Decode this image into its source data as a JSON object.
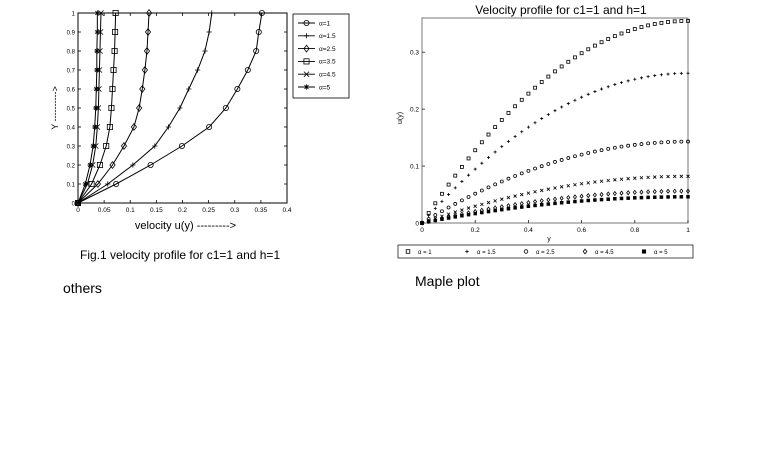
{
  "captions": {
    "left_caption": "Fig.1 velocity profile for c1=1 and h=1",
    "left_note": "others",
    "right_note": "Maple plot"
  },
  "chart_data": [
    {
      "type": "line",
      "title": "",
      "xlabel": "velocity u(y) --------->",
      "ylabel": "Y ---------->",
      "xlim": [
        0,
        0.4
      ],
      "ylim": [
        0,
        1
      ],
      "x_ticks": [
        "0",
        "0.05",
        "0.1",
        "0.15",
        "0.2",
        "0.25",
        "0.3",
        "0.35",
        "0.4"
      ],
      "y_ticks": [
        "0",
        "0.1",
        "0.2",
        "0.3",
        "0.4",
        "0.5",
        "0.6",
        "0.7",
        "0.8",
        "0.9",
        "1"
      ],
      "grid": false,
      "legend_position": "right",
      "y": [
        0,
        0.1,
        0.2,
        0.3,
        0.4,
        0.5,
        0.6,
        0.7,
        0.8,
        0.9,
        1.0
      ],
      "series": [
        {
          "name": "α=1",
          "marker": "circle",
          "values": [
            0,
            0.073,
            0.139,
            0.199,
            0.251,
            0.283,
            0.305,
            0.325,
            0.341,
            0.346,
            0.352
          ]
        },
        {
          "name": "α=1.5",
          "marker": "plus",
          "values": [
            0,
            0.057,
            0.105,
            0.147,
            0.173,
            0.195,
            0.212,
            0.229,
            0.243,
            0.251,
            0.256
          ]
        },
        {
          "name": "α=2.5",
          "marker": "diamond",
          "values": [
            0,
            0.038,
            0.066,
            0.088,
            0.107,
            0.117,
            0.123,
            0.128,
            0.132,
            0.134,
            0.136
          ]
        },
        {
          "name": "α=3.5",
          "marker": "square",
          "values": [
            0,
            0.026,
            0.042,
            0.054,
            0.061,
            0.064,
            0.066,
            0.068,
            0.07,
            0.071,
            0.072
          ]
        },
        {
          "name": "α=4.5",
          "marker": "x",
          "values": [
            0,
            0.018,
            0.028,
            0.034,
            0.037,
            0.039,
            0.04,
            0.041,
            0.042,
            0.043,
            0.044
          ]
        },
        {
          "name": "α=5",
          "marker": "star",
          "values": [
            0,
            0.014,
            0.023,
            0.029,
            0.032,
            0.034,
            0.035,
            0.036,
            0.036,
            0.037,
            0.037
          ]
        }
      ]
    },
    {
      "type": "scatter",
      "title": "Velocity profile for c1=1 and h=1",
      "xlabel": "y",
      "ylabel": "u(y)",
      "xlim": [
        0,
        1
      ],
      "ylim": [
        0,
        0.36
      ],
      "x_ticks": [
        "0",
        "0.2",
        "0.4",
        "0.6",
        "0.8",
        "1"
      ],
      "y_ticks": [
        "0",
        "0.1",
        "0.2",
        "0.3"
      ],
      "grid": false,
      "legend_position": "bottom",
      "x_points": 40,
      "series": [
        {
          "name": "α = 1",
          "marker": "square",
          "endpoint": 0.355
        },
        {
          "name": "α = 1.5",
          "marker": "plus",
          "endpoint": 0.263
        },
        {
          "name": "α = 2.5",
          "marker": "circle",
          "endpoint": 0.143
        },
        {
          "name": "α = 3.5",
          "marker": "x",
          "endpoint": 0.082
        },
        {
          "name": "α = 4.5",
          "marker": "diamond",
          "endpoint": 0.056
        },
        {
          "name": "α = 5",
          "marker": "filled-square",
          "endpoint": 0.046
        }
      ],
      "legend_entries": [
        "α = 1",
        "α = 1.5",
        "α = 2.5",
        "α = 4.5",
        "α = 5"
      ]
    }
  ]
}
